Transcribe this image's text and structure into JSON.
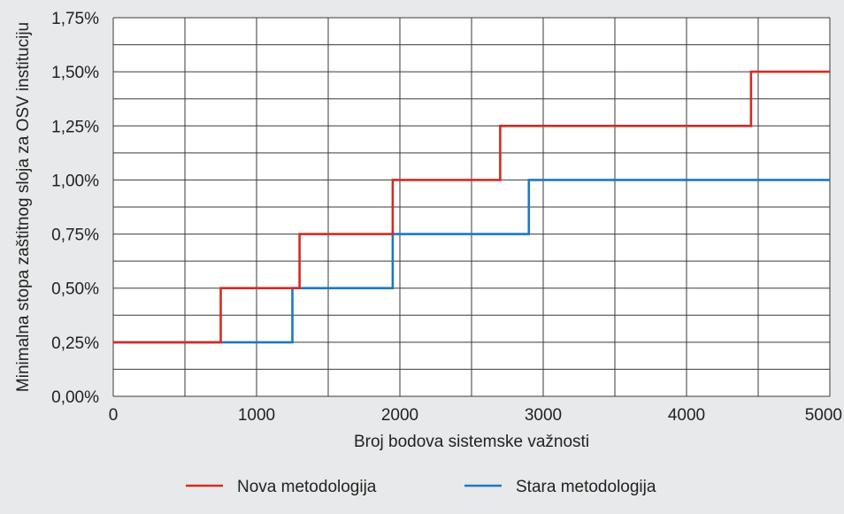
{
  "chart_data": {
    "type": "line",
    "step": true,
    "xlabel": "Broj bodova sistemske važnosti",
    "ylabel": "Minimalna stopa zaštitnog sloja za OSV instituciju",
    "xlim": [
      0,
      5000
    ],
    "ylim": [
      0,
      1.75
    ],
    "x_ticks": [
      0,
      1000,
      2000,
      3000,
      4000,
      5000
    ],
    "x_tick_labels": [
      "0",
      "1000",
      "2000",
      "3000",
      "4000",
      "5000"
    ],
    "y_ticks": [
      0,
      0.25,
      0.5,
      0.75,
      1.0,
      1.25,
      1.5,
      1.75
    ],
    "y_tick_labels": [
      "0,00%",
      "0,25%",
      "0,50%",
      "0,75%",
      "1,00%",
      "1,25%",
      "1,50%",
      "1,75%"
    ],
    "grid": true,
    "legend_position": "bottom",
    "series": [
      {
        "name": "Nova metodologija",
        "color": "#d42b23",
        "points": [
          [
            0,
            0.25
          ],
          [
            750,
            0.25
          ],
          [
            750,
            0.5
          ],
          [
            1300,
            0.5
          ],
          [
            1300,
            0.75
          ],
          [
            1950,
            0.75
          ],
          [
            1950,
            1.0
          ],
          [
            2700,
            1.0
          ],
          [
            2700,
            1.25
          ],
          [
            4450,
            1.25
          ],
          [
            4450,
            1.5
          ],
          [
            5000,
            1.5
          ]
        ]
      },
      {
        "name": "Stara metodologija",
        "color": "#1e77c2",
        "points": [
          [
            0,
            0.25
          ],
          [
            1250,
            0.25
          ],
          [
            1250,
            0.5
          ],
          [
            1950,
            0.5
          ],
          [
            1950,
            0.75
          ],
          [
            2900,
            0.75
          ],
          [
            2900,
            1.0
          ],
          [
            5000,
            1.0
          ]
        ]
      }
    ]
  }
}
